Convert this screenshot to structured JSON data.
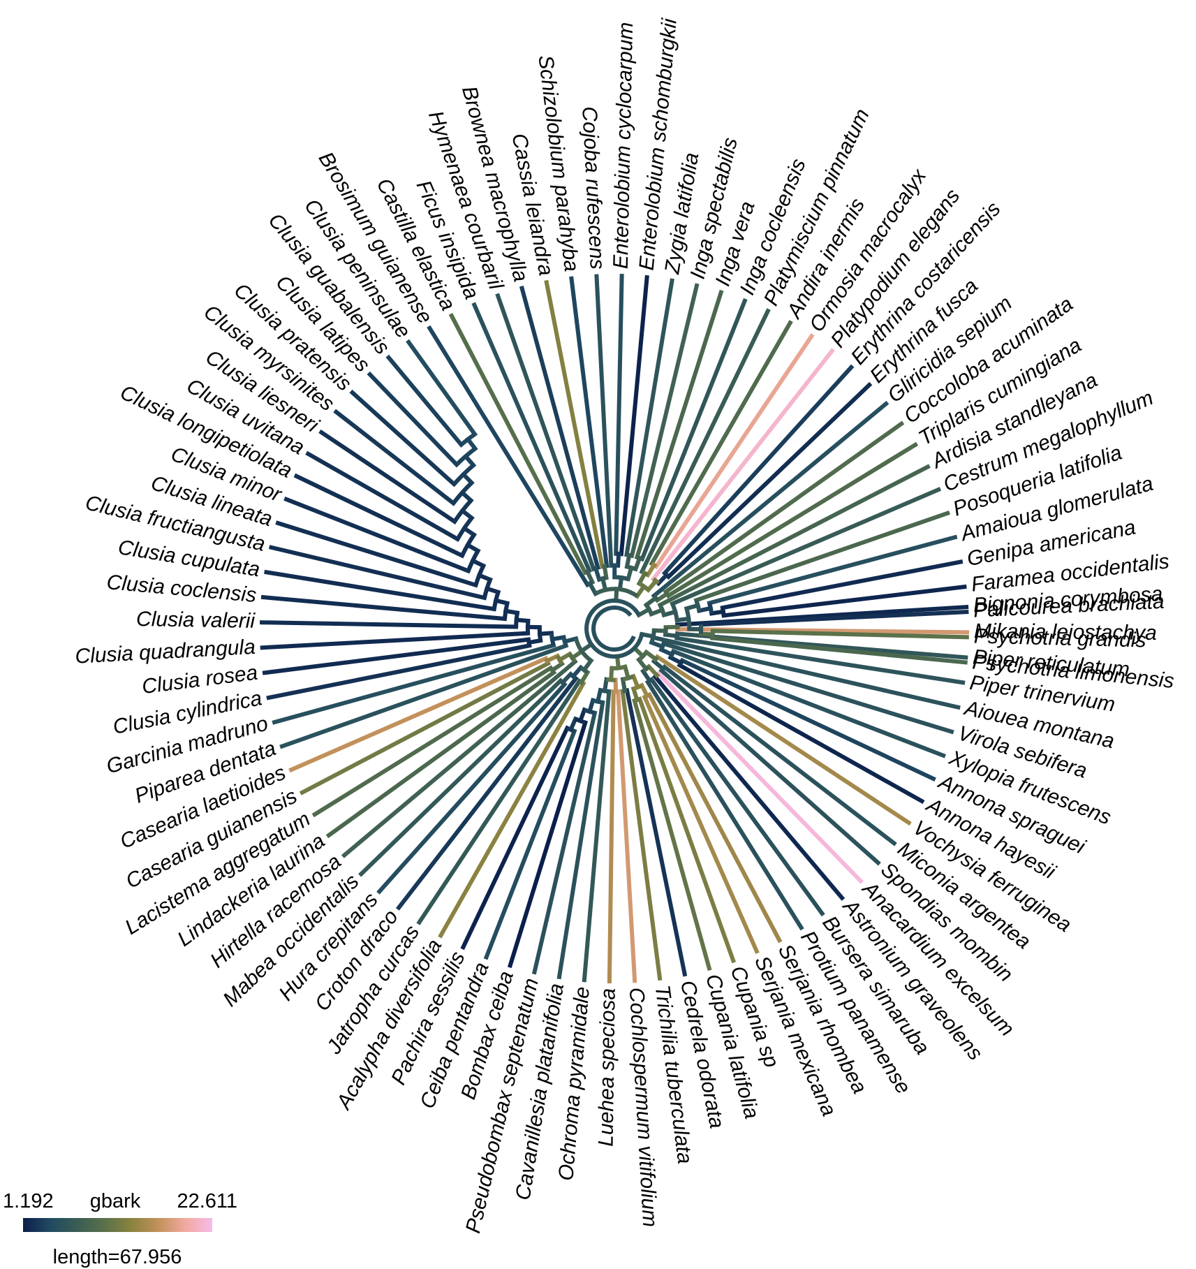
{
  "figure": {
    "tips": [
      "Bignonia corymbosa",
      "Mikania leiostachya",
      "Piper reticulatum",
      "Piper trinervium",
      "Aiouea montana",
      "Virola sebifera",
      "Xylopia frutescens",
      "Annona spraguei",
      "Annona hayesii",
      "Vochysia ferruginea",
      "Miconia argentea",
      "Spondias mombin",
      "Anacardium excelsum",
      "Astronium graveolens",
      "Bursera simaruba",
      "Protium panamense",
      "Serjania rhombea",
      "Serjania mexicana",
      "Cupania sp",
      "Cupania latifolia",
      "Cedrela odorata",
      "Trichilia tuberculata",
      "Cochlospermum vitifolium",
      "Luehea speciosa",
      "Ochroma pyramidale",
      "Cavanillesia platanifolia",
      "Pseudobombax septenatum",
      "Bombax ceiba",
      "Ceiba pentandra",
      "Pachira sessilis",
      "Acalypha diversifolia",
      "Jatropha curcas",
      "Croton draco",
      "Hura crepitans",
      "Mabea occidentalis",
      "Hirtella racemosa",
      "Lindackeria laurina",
      "Lacistema aggregatum",
      "Casearia guianensis",
      "Casearia laetioides",
      "Piparea dentata",
      "Garcinia madruno",
      "Clusia cylindrica",
      "Clusia rosea",
      "Clusia quadrangula",
      "Clusia valerii",
      "Clusia coclensis",
      "Clusia cupulata",
      "Clusia fructiangusta",
      "Clusia lineata",
      "Clusia minor",
      "Clusia longipetiolata",
      "Clusia uvitana",
      "Clusia liesneri",
      "Clusia myrsinites",
      "Clusia pratensis",
      "Clusia latipes",
      "Clusia guabalensis",
      "Clusia peninsulae",
      "Brosimum guianense",
      "Castilla elastica",
      "Ficus insipida",
      "Hymenaea courbaril",
      "Brownea macrophylla",
      "Cassia leiandra",
      "Schizolobium parahyba",
      "Cojoba rufescens",
      "Enterolobium cyclocarpum",
      "Enterolobium schomburgkii",
      "Zygia latifolia",
      "Inga spectabilis",
      "Inga vera",
      "Inga cocleensis",
      "Platymiscium pinnatum",
      "Andira inermis",
      "Ormosia macrocalyx",
      "Platypodium elegans",
      "Erythrina costaricensis",
      "Erythrina fusca",
      "Gliricidia sepium",
      "Coccoloba acuminata",
      "Triplaris cumingiana",
      "Ardisia standleyana",
      "Cestrum megalophyllum",
      "Posoqueria latifolia",
      "Amaioua glomerulata",
      "Genipa americana",
      "Faramea occidentalis",
      "Palicourea brachiata",
      "Psychotria grandis",
      "Psychotria limonensis"
    ],
    "tip_values": [
      1.8,
      17.5,
      6.2,
      5.8,
      5.6,
      5.6,
      5.4,
      3.8,
      1.6,
      14.8,
      5.5,
      5.6,
      22.0,
      1.8,
      5.3,
      5.3,
      14.5,
      14.8,
      12.5,
      11.0,
      2.6,
      12.5,
      17.5,
      15.5,
      6.5,
      5.5,
      5.4,
      1.2,
      4.8,
      1.5,
      13.5,
      6.5,
      3.0,
      4.8,
      6.5,
      8.0,
      9.0,
      9.5,
      12.0,
      16.5,
      5.5,
      5.0,
      2.4,
      2.0,
      2.0,
      2.2,
      2.2,
      2.2,
      2.3,
      2.3,
      2.3,
      2.3,
      2.5,
      2.5,
      3.0,
      3.0,
      3.4,
      3.6,
      4.5,
      4.0,
      10.0,
      5.5,
      6.0,
      3.4,
      13.0,
      4.0,
      5.5,
      5.0,
      1.5,
      6.0,
      8.0,
      9.0,
      6.2,
      7.2,
      9.5,
      19.0,
      21.5,
      3.4,
      2.2,
      5.0,
      9.5,
      9.5,
      8.5,
      7.0,
      9.0,
      5.0,
      2.0,
      1.6,
      2.4,
      10.5,
      9.0
    ],
    "legend": {
      "min_label": "1.192",
      "variable_label": "gbark",
      "max_label": "22.611",
      "length_label": "length=67.956",
      "min": 1.192,
      "max": 22.611,
      "colors": [
        "#0b1f4b",
        "#214a61",
        "#3a5d55",
        "#59714a",
        "#8a8240",
        "#c2915a",
        "#f2a9a0",
        "#f6bce8"
      ]
    }
  }
}
